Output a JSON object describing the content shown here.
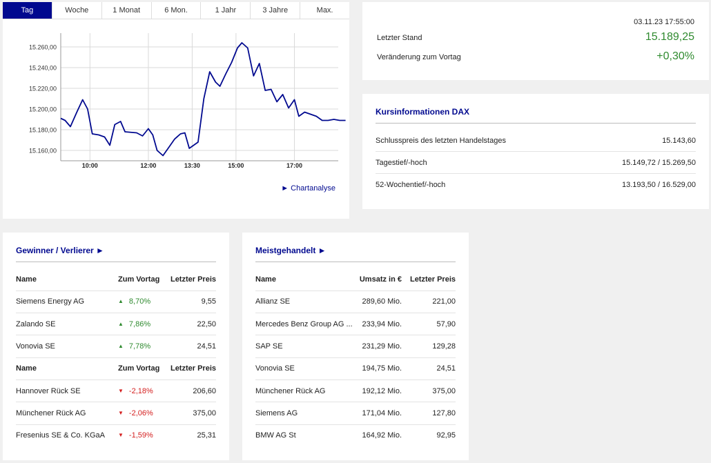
{
  "tabs": [
    "Tag",
    "Woche",
    "1 Monat",
    "6 Mon.",
    "1 Jahr",
    "3 Jahre",
    "Max."
  ],
  "active_tab": 0,
  "chart_link": "► Chartanalyse",
  "colors": {
    "accent": "#00098f",
    "up": "#2f8a2f",
    "down": "#d42020"
  },
  "chart_data": {
    "type": "line",
    "x_ticks": [
      {
        "label": "10:00",
        "t": 10.0
      },
      {
        "label": "12:00",
        "t": 12.0
      },
      {
        "label": "13:30",
        "t": 13.5
      },
      {
        "label": "15:00",
        "t": 15.0
      },
      {
        "label": "17:00",
        "t": 17.0
      }
    ],
    "y_ticks": [
      "15.160,00",
      "15.180,00",
      "15.200,00",
      "15.220,00",
      "15.240,00",
      "15.260,00"
    ],
    "ylim": [
      15150,
      15270
    ],
    "xlim": [
      9.0,
      18.5
    ],
    "series": [
      {
        "points": [
          [
            9.0,
            15191
          ],
          [
            9.15,
            15189
          ],
          [
            9.33,
            15183
          ],
          [
            9.55,
            15197
          ],
          [
            9.75,
            15209
          ],
          [
            9.92,
            15200
          ],
          [
            10.08,
            15176
          ],
          [
            10.3,
            15175
          ],
          [
            10.5,
            15173
          ],
          [
            10.68,
            15165
          ],
          [
            10.85,
            15185
          ],
          [
            11.05,
            15188
          ],
          [
            11.2,
            15178
          ],
          [
            11.6,
            15177
          ],
          [
            11.8,
            15174
          ],
          [
            12.0,
            15181
          ],
          [
            12.15,
            15175
          ],
          [
            12.3,
            15160
          ],
          [
            12.5,
            15155
          ],
          [
            12.7,
            15163
          ],
          [
            12.9,
            15171
          ],
          [
            13.1,
            15176
          ],
          [
            13.25,
            15177
          ],
          [
            13.4,
            15162
          ],
          [
            13.7,
            15168
          ],
          [
            13.9,
            15210
          ],
          [
            14.1,
            15236
          ],
          [
            14.3,
            15226
          ],
          [
            14.45,
            15222
          ],
          [
            14.65,
            15234
          ],
          [
            14.85,
            15245
          ],
          [
            15.05,
            15259
          ],
          [
            15.2,
            15264
          ],
          [
            15.4,
            15259
          ],
          [
            15.6,
            15232
          ],
          [
            15.8,
            15244
          ],
          [
            16.0,
            15218
          ],
          [
            16.2,
            15219
          ],
          [
            16.4,
            15207
          ],
          [
            16.6,
            15214
          ],
          [
            16.8,
            15201
          ],
          [
            17.0,
            15209
          ],
          [
            17.15,
            15193
          ],
          [
            17.35,
            15197
          ],
          [
            17.55,
            15195
          ],
          [
            17.75,
            15193
          ],
          [
            17.95,
            15189
          ],
          [
            18.15,
            15189
          ],
          [
            18.35,
            15190
          ],
          [
            18.55,
            15189
          ],
          [
            18.75,
            15189
          ]
        ]
      }
    ]
  },
  "quote": {
    "timestamp": "03.11.23 17:55:00",
    "last_label": "Letzter Stand",
    "last_value": "15.189,25",
    "change_label": "Veränderung zum Vortag",
    "change_value": "+0,30%"
  },
  "info": {
    "title": "Kursinformationen DAX",
    "rows": [
      {
        "label": "Schlusspreis des letzten Handelstages",
        "value": "15.143,60"
      },
      {
        "label": "Tagestief/-hoch",
        "value": "15.149,72 / 15.269,50"
      },
      {
        "label": "52-Wochentief/-hoch",
        "value": "13.193,50 / 16.529,00"
      }
    ]
  },
  "gainers": {
    "title": "Gewinner / Verlierer ►",
    "headers": [
      "Name",
      "Zum Vortag",
      "Letzter Preis"
    ],
    "winners": [
      {
        "name": "Siemens Energy AG",
        "change": "8,70%",
        "price": "9,55"
      },
      {
        "name": "Zalando SE",
        "change": "7,86%",
        "price": "22,50"
      },
      {
        "name": "Vonovia SE",
        "change": "7,78%",
        "price": "24,51"
      }
    ],
    "losers": [
      {
        "name": "Hannover Rück SE",
        "change": "-2,18%",
        "price": "206,60"
      },
      {
        "name": "Münchener Rück AG",
        "change": "-2,06%",
        "price": "375,00"
      },
      {
        "name": "Fresenius SE & Co. KGaA",
        "change": "-1,59%",
        "price": "25,31"
      }
    ],
    "up_arrow": "▲",
    "down_arrow": "▼"
  },
  "traded": {
    "title": "Meistgehandelt ►",
    "headers": [
      "Name",
      "Umsatz in €",
      "Letzter Preis"
    ],
    "rows": [
      {
        "name": "Allianz SE",
        "volume": "289,60 Mio.",
        "price": "221,00"
      },
      {
        "name": "Mercedes Benz Group AG ...",
        "volume": "233,94 Mio.",
        "price": "57,90"
      },
      {
        "name": "SAP SE",
        "volume": "231,29 Mio.",
        "price": "129,28"
      },
      {
        "name": "Vonovia SE",
        "volume": "194,75 Mio.",
        "price": "24,51"
      },
      {
        "name": "Münchener Rück AG",
        "volume": "192,12 Mio.",
        "price": "375,00"
      },
      {
        "name": "Siemens AG",
        "volume": "171,04 Mio.",
        "price": "127,80"
      },
      {
        "name": "BMW AG St",
        "volume": "164,92 Mio.",
        "price": "92,95"
      }
    ]
  }
}
